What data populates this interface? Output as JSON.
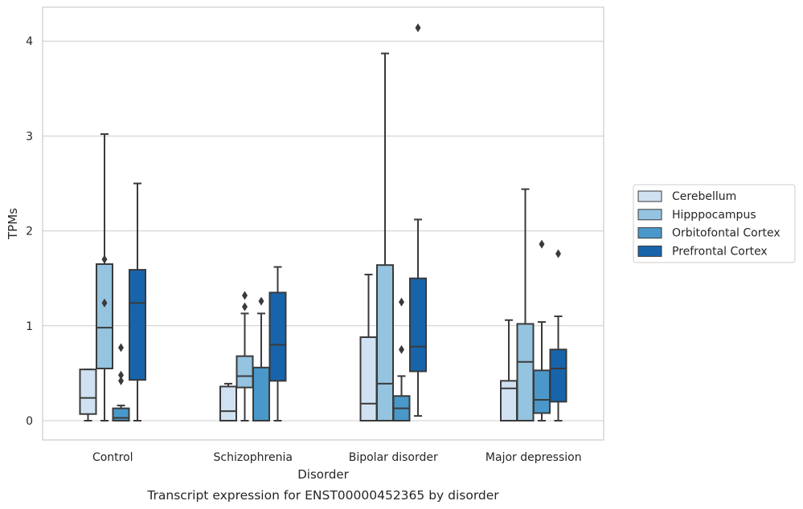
{
  "chart_data": {
    "type": "box",
    "xlabel": "Disorder",
    "ylabel": "TPMs",
    "caption": "Transcript expression for ENST00000452365 by disorder",
    "ylim": [
      -0.2,
      4.35
    ],
    "yticks": [
      0,
      1,
      2,
      3,
      4
    ],
    "grid": "y",
    "legend_position": "right",
    "categories": [
      "Control",
      "Schizophrenia",
      "Bipolar disorder",
      "Major depression"
    ],
    "series": [
      {
        "name": "Cerebellum",
        "color": "#d0e1f2",
        "boxes": [
          {
            "whislo": 0.0,
            "q1": 0.07,
            "med": 0.24,
            "q3": 0.54,
            "whishi": 0.54,
            "fliers": []
          },
          {
            "whislo": 0.0,
            "q1": 0.0,
            "med": 0.1,
            "q3": 0.36,
            "whishi": 0.39,
            "fliers": []
          },
          {
            "whislo": 0.0,
            "q1": 0.0,
            "med": 0.18,
            "q3": 0.88,
            "whishi": 1.54,
            "fliers": []
          },
          {
            "whislo": 0.0,
            "q1": 0.0,
            "med": 0.34,
            "q3": 0.42,
            "whishi": 1.06,
            "fliers": []
          }
        ]
      },
      {
        "name": "Hipppocampus",
        "color": "#94c4df",
        "boxes": [
          {
            "whislo": 0.0,
            "q1": 0.55,
            "med": 0.98,
            "q3": 1.65,
            "whishi": 3.02,
            "fliers": [
              1.7,
              1.24
            ]
          },
          {
            "whislo": 0.0,
            "q1": 0.35,
            "med": 0.47,
            "q3": 0.68,
            "whishi": 1.13,
            "fliers": [
              1.32,
              1.2
            ]
          },
          {
            "whislo": 0.0,
            "q1": 0.0,
            "med": 0.39,
            "q3": 1.64,
            "whishi": 3.87,
            "fliers": []
          },
          {
            "whislo": 0.0,
            "q1": 0.0,
            "med": 0.62,
            "q3": 1.02,
            "whishi": 2.44,
            "fliers": []
          }
        ]
      },
      {
        "name": "Orbitofontal Cortex",
        "color": "#4a98c9",
        "boxes": [
          {
            "whislo": 0.0,
            "q1": 0.0,
            "med": 0.03,
            "q3": 0.13,
            "whishi": 0.16,
            "fliers": [
              0.77,
              0.48,
              0.42
            ]
          },
          {
            "whislo": 0.0,
            "q1": 0.0,
            "med": 0.0,
            "q3": 0.56,
            "whishi": 1.13,
            "fliers": [
              1.26
            ]
          },
          {
            "whislo": 0.0,
            "q1": 0.0,
            "med": 0.13,
            "q3": 0.26,
            "whishi": 0.47,
            "fliers": [
              1.25,
              0.75
            ]
          },
          {
            "whislo": 0.0,
            "q1": 0.08,
            "med": 0.22,
            "q3": 0.53,
            "whishi": 1.04,
            "fliers": [
              1.86
            ]
          }
        ]
      },
      {
        "name": "Prefrontal Cortex",
        "color": "#1764ab",
        "boxes": [
          {
            "whislo": 0.0,
            "q1": 0.43,
            "med": 1.24,
            "q3": 1.59,
            "whishi": 2.5,
            "fliers": []
          },
          {
            "whislo": 0.0,
            "q1": 0.42,
            "med": 0.8,
            "q3": 1.35,
            "whishi": 1.62,
            "fliers": []
          },
          {
            "whislo": 0.05,
            "q1": 0.52,
            "med": 0.78,
            "q3": 1.5,
            "whishi": 2.12,
            "fliers": [
              4.14
            ]
          },
          {
            "whislo": 0.0,
            "q1": 0.2,
            "med": 0.55,
            "q3": 0.75,
            "whishi": 1.1,
            "fliers": [
              1.76
            ]
          }
        ]
      }
    ]
  }
}
